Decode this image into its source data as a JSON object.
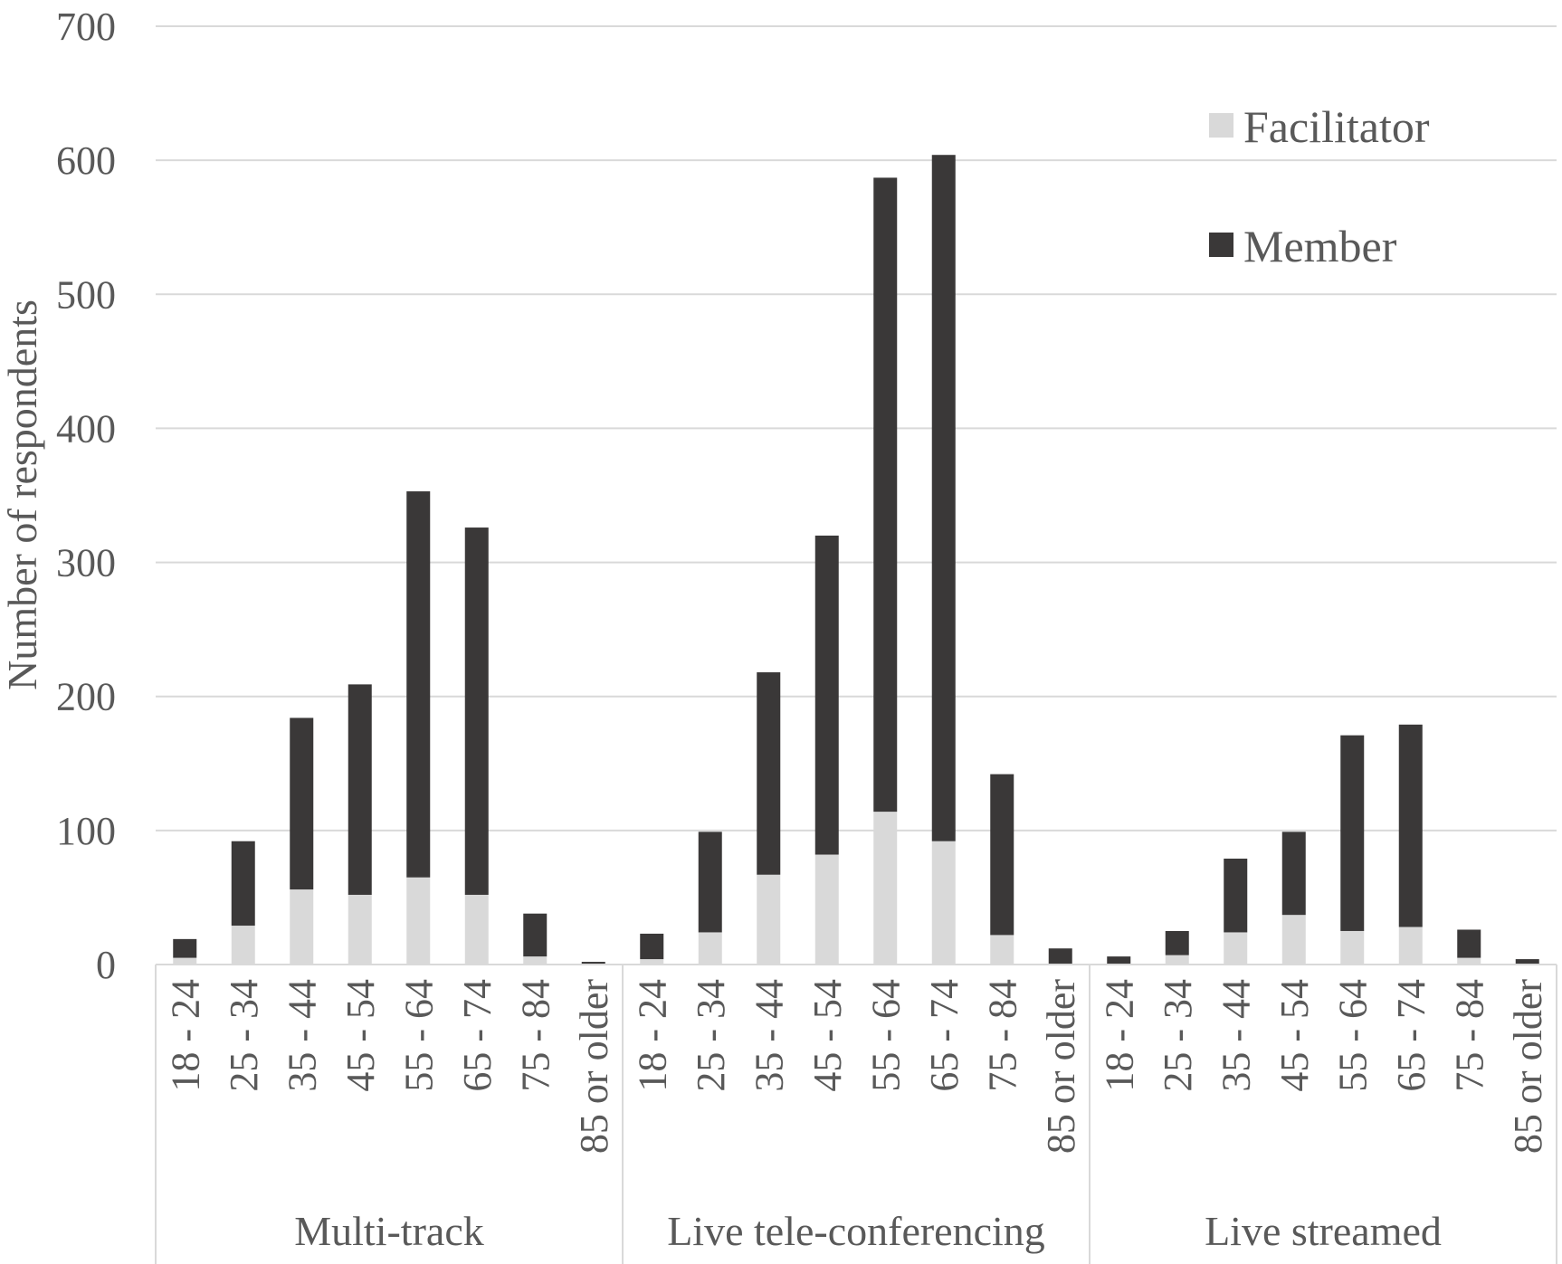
{
  "chart_data": {
    "type": "bar",
    "stacked": true,
    "ylabel": "Number of respondents",
    "ylim": [
      0,
      700
    ],
    "yticks": [
      0,
      100,
      200,
      300,
      400,
      500,
      600,
      700
    ],
    "grid": true,
    "legend_position": "top-right",
    "categories": [
      "18 - 24",
      "25 - 34",
      "35 - 44",
      "45 - 54",
      "55 - 64",
      "65 - 74",
      "75 - 84",
      "85 or older"
    ],
    "groups": [
      {
        "name": "Multi-track",
        "series": [
          {
            "name": "Facilitator",
            "values": [
              5,
              29,
              56,
              52,
              65,
              52,
              6,
              0
            ]
          },
          {
            "name": "Member",
            "values": [
              14,
              63,
              128,
              157,
              288,
              274,
              32,
              2
            ]
          }
        ]
      },
      {
        "name": "Live tele-conferencing",
        "series": [
          {
            "name": "Facilitator",
            "values": [
              4,
              24,
              67,
              82,
              114,
              92,
              22,
              0
            ]
          },
          {
            "name": "Member",
            "values": [
              19,
              75,
              151,
              238,
              473,
              512,
              120,
              12
            ]
          }
        ]
      },
      {
        "name": "Live streamed",
        "series": [
          {
            "name": "Facilitator",
            "values": [
              0,
              7,
              24,
              37,
              25,
              28,
              5,
              0
            ]
          },
          {
            "name": "Member",
            "values": [
              6,
              18,
              55,
              62,
              146,
              151,
              21,
              4
            ]
          }
        ]
      }
    ],
    "legend": [
      {
        "name": "Facilitator",
        "color": "#d9d9d9"
      },
      {
        "name": "Member",
        "color": "#3a3838"
      }
    ],
    "colors": {
      "facilitator": "#d9d9d9",
      "member": "#3a3838",
      "grid": "#d9d9d9",
      "text": "#595959"
    }
  }
}
